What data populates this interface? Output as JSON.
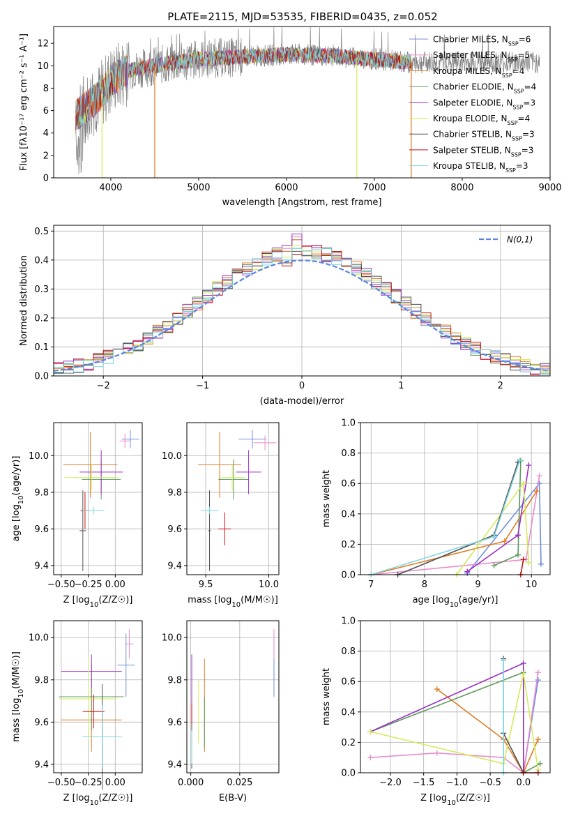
{
  "title": "PLATE=2115, MJD=53535, FIBERID=0435, z=0.052",
  "colors": {
    "Chabrier MILES": "#6f8ee0",
    "Salpeter MILES": "#e88ccc",
    "Kroupa MILES": "#e07b24",
    "Chabrier ELODIE": "#5c9a5c",
    "Salpeter ELODIE": "#9a2fc4",
    "Kroupa ELODIE": "#d4ea5a",
    "Chabrier STELIB": "#505050",
    "Salpeter STELIB": "#cc1010",
    "Kroupa STELIB": "#7fd6e0",
    "data": "#808080",
    "normal": "#5b84e0"
  },
  "chart_data": [
    {
      "id": "spectrum",
      "type": "line",
      "title": "PLATE=2115, MJD=53535, FIBERID=0435, z=0.052",
      "xlabel": "wavelength [Angstrom, rest frame]",
      "ylabel": "Flux [fλ10⁻¹⁷ erg cm⁻² s⁻¹ A⁻¹]",
      "xlim": [
        3350,
        9000
      ],
      "ylim": [
        0,
        13.5
      ],
      "xticks": [
        4000,
        5000,
        6000,
        7000,
        8000,
        9000
      ],
      "yticks": [
        0,
        2,
        4,
        6,
        8,
        10,
        12
      ],
      "grid": false,
      "legend_position": "top-right",
      "legend": [
        {
          "label": "Chabrier MILES, N",
          "sub": "SSP",
          "suffix": "=6"
        },
        {
          "label": "Salpeter MILES, N",
          "sub": "SSP",
          "suffix": "=5"
        },
        {
          "label": "Kroupa MILES, N",
          "sub": "SSP",
          "suffix": "=4"
        },
        {
          "label": "Chabrier ELODIE, N",
          "sub": "SSP",
          "suffix": "=4"
        },
        {
          "label": "Salpeter ELODIE, N",
          "sub": "SSP",
          "suffix": "=3"
        },
        {
          "label": "Kroupa ELODIE, N",
          "sub": "SSP",
          "suffix": "=4"
        },
        {
          "label": "Chabrier STELIB, N",
          "sub": "SSP",
          "suffix": "=3"
        },
        {
          "label": "Salpeter STELIB, N",
          "sub": "SSP",
          "suffix": "=3"
        },
        {
          "label": "Kroupa STELIB, N",
          "sub": "SSP",
          "suffix": "=3"
        }
      ],
      "continuum": [
        [
          3600,
          5.5
        ],
        [
          3750,
          6.5
        ],
        [
          3900,
          7.5
        ],
        [
          4000,
          8.7
        ],
        [
          4200,
          9.6
        ],
        [
          4500,
          10.0
        ],
        [
          5000,
          10.6
        ],
        [
          5500,
          10.8
        ],
        [
          6000,
          11.0
        ],
        [
          6500,
          10.9
        ],
        [
          7000,
          10.6
        ],
        [
          7400,
          10.3
        ]
      ],
      "spikes_down": [
        [
          3900,
          0.0
        ],
        [
          4500,
          0.0
        ],
        [
          6800,
          0.0
        ],
        [
          7420,
          0.0
        ]
      ]
    },
    {
      "id": "residuals",
      "type": "line",
      "xlabel": "(data-model)/error",
      "ylabel": "Normed distribution",
      "xlim": [
        -2.5,
        2.5
      ],
      "ylim": [
        0,
        0.52
      ],
      "xticks": [
        -2,
        -1,
        0,
        1,
        2
      ],
      "yticks": [
        0.0,
        0.1,
        0.2,
        0.3,
        0.4,
        0.5
      ],
      "grid": true,
      "legend_position": "top-right",
      "legend_label": "N(0,1)",
      "bins": 50,
      "hist_peaks": [
        0.47,
        0.48,
        0.47,
        0.44,
        0.49,
        0.45,
        0.43,
        0.42,
        0.44
      ],
      "distribution": "normal",
      "mean": 0,
      "std": 1
    },
    {
      "id": "age_vs_Z",
      "type": "scatter",
      "xlabel": "Z [log10(Z/Z☉)]",
      "ylabel": "age  [log10(age/yr)]",
      "xlim": [
        -0.57,
        0.25
      ],
      "ylim": [
        9.35,
        10.18
      ],
      "xticks": [
        -0.5,
        -0.25,
        0.0
      ],
      "yticks": [
        9.4,
        9.6,
        9.8,
        10.0
      ],
      "grid": true,
      "points": [
        {
          "series": "Chabrier MILES",
          "x": 0.14,
          "y": 10.09,
          "xerr": 0.08,
          "yerr": 0.05
        },
        {
          "series": "Salpeter MILES",
          "x": 0.09,
          "y": 10.08,
          "xerr": 0.05,
          "yerr": 0.04
        },
        {
          "series": "Kroupa MILES",
          "x": -0.23,
          "y": 9.95,
          "xerr": 0.25,
          "yerr": 0.18
        },
        {
          "series": "Chabrier ELODIE",
          "x": -0.13,
          "y": 9.87,
          "xerr": 0.18,
          "yerr": 0.11
        },
        {
          "series": "Salpeter ELODIE",
          "x": -0.13,
          "y": 9.91,
          "xerr": 0.2,
          "yerr": 0.12
        },
        {
          "series": "Kroupa ELODIE",
          "x": -0.22,
          "y": 9.88,
          "xerr": 0.25,
          "yerr": 0.07
        },
        {
          "series": "Chabrier STELIB",
          "x": -0.3,
          "y": 9.59,
          "xerr": 0.03,
          "yerr": 0.22
        },
        {
          "series": "Salpeter STELIB",
          "x": -0.28,
          "y": 9.7,
          "xerr": 0.04,
          "yerr": 0.1
        },
        {
          "series": "Kroupa STELIB",
          "x": -0.2,
          "y": 9.7,
          "xerr": 0.1,
          "yerr": 0.02
        }
      ]
    },
    {
      "id": "age_vs_mass",
      "type": "scatter",
      "xlabel": "mass [log10(M/M☉)]",
      "ylabel": "",
      "xlim": [
        9.35,
        10.08
      ],
      "ylim": [
        9.35,
        10.18
      ],
      "xticks": [
        9.5,
        10.0
      ],
      "yticks": [
        9.4,
        9.6,
        9.8,
        10.0
      ],
      "grid": true,
      "points": [
        {
          "series": "Chabrier MILES",
          "x": 9.87,
          "y": 10.09,
          "xerr": 0.11,
          "yerr": 0.05
        },
        {
          "series": "Salpeter MILES",
          "x": 9.97,
          "y": 10.07,
          "xerr": 0.09,
          "yerr": 0.04
        },
        {
          "series": "Kroupa MILES",
          "x": 9.61,
          "y": 9.95,
          "xerr": 0.17,
          "yerr": 0.18
        },
        {
          "series": "Chabrier ELODIE",
          "x": 9.72,
          "y": 9.87,
          "xerr": 0.12,
          "yerr": 0.11
        },
        {
          "series": "Salpeter ELODIE",
          "x": 9.84,
          "y": 9.91,
          "xerr": 0.1,
          "yerr": 0.12
        },
        {
          "series": "Kroupa ELODIE",
          "x": 9.71,
          "y": 9.88,
          "xerr": 0.1,
          "yerr": 0.07
        },
        {
          "series": "Chabrier STELIB",
          "x": 9.53,
          "y": 9.59,
          "xerr": 0.01,
          "yerr": 0.22
        },
        {
          "series": "Salpeter STELIB",
          "x": 9.65,
          "y": 9.6,
          "xerr": 0.05,
          "yerr": 0.09
        },
        {
          "series": "Kroupa STELIB",
          "x": 9.53,
          "y": 9.7,
          "xerr": 0.07,
          "yerr": 0.02
        }
      ]
    },
    {
      "id": "mass_weight_vs_age",
      "type": "line",
      "xlabel": "age  [log10(age/yr)]",
      "ylabel": "mass weight",
      "xlim": [
        6.8,
        10.35
      ],
      "ylim": [
        0,
        1.0
      ],
      "xticks": [
        7,
        8,
        9,
        10
      ],
      "yticks": [
        0.0,
        0.2,
        0.4,
        0.6,
        0.8,
        1.0
      ],
      "grid": true,
      "series": [
        {
          "name": "Chabrier MILES",
          "x": [
            8.8,
            10.15,
            10.18
          ],
          "y": [
            0.01,
            0.6,
            0.07
          ]
        },
        {
          "name": "Salpeter MILES",
          "x": [
            7.0,
            9.9,
            10.15
          ],
          "y": [
            0.0,
            0.1,
            0.65
          ]
        },
        {
          "name": "Kroupa MILES",
          "x": [
            7.0,
            9.5,
            10.1
          ],
          "y": [
            0.0,
            0.22,
            0.55
          ]
        },
        {
          "name": "Chabrier ELODIE",
          "x": [
            9.3,
            9.75,
            9.8
          ],
          "y": [
            0.06,
            0.13,
            0.75
          ]
        },
        {
          "name": "Salpeter ELODIE",
          "x": [
            8.8,
            9.75,
            9.95
          ],
          "y": [
            0.02,
            0.26,
            0.72
          ]
        },
        {
          "name": "Kroupa ELODIE",
          "x": [
            8.6,
            9.85,
            9.95
          ],
          "y": [
            0.0,
            0.6,
            0.08
          ]
        },
        {
          "name": "Chabrier STELIB",
          "x": [
            7.5,
            9.3,
            9.75
          ],
          "y": [
            0.0,
            0.26,
            0.74
          ]
        },
        {
          "name": "Salpeter STELIB",
          "x": [
            9.8,
            9.85
          ],
          "y": [
            0.0,
            0.1
          ]
        },
        {
          "name": "Kroupa STELIB",
          "x": [
            7.0,
            9.3,
            9.78
          ],
          "y": [
            0.0,
            0.25,
            0.75
          ]
        }
      ]
    },
    {
      "id": "mass_vs_Z",
      "type": "scatter",
      "xlabel": "Z [log10(Z/Z☉)]",
      "ylabel": "mass [log10(M/M☉)]",
      "xlim": [
        -0.57,
        0.25
      ],
      "ylim": [
        9.36,
        10.08
      ],
      "xticks": [
        -0.5,
        -0.25,
        0.0
      ],
      "yticks": [
        9.4,
        9.6,
        9.8,
        10.0
      ],
      "grid": true,
      "points": [
        {
          "series": "Chabrier MILES",
          "x": 0.1,
          "y": 9.87,
          "xerr": 0.08,
          "yerr": 0.15
        },
        {
          "series": "Salpeter MILES",
          "x": 0.13,
          "y": 9.97,
          "xerr": 0.04,
          "yerr": 0.07
        },
        {
          "series": "Kroupa MILES",
          "x": -0.22,
          "y": 9.61,
          "xerr": 0.28,
          "yerr": 0.15
        },
        {
          "series": "Chabrier ELODIE",
          "x": -0.22,
          "y": 9.72,
          "xerr": 0.3,
          "yerr": 0.16
        },
        {
          "series": "Salpeter ELODIE",
          "x": -0.22,
          "y": 9.84,
          "xerr": 0.28,
          "yerr": 0.08
        },
        {
          "series": "Kroupa ELODIE",
          "x": -0.25,
          "y": 9.71,
          "xerr": 0.27,
          "yerr": 0.2
        },
        {
          "series": "Chabrier STELIB",
          "x": -0.12,
          "y": 9.53,
          "xerr": 0.17,
          "yerr": 0.25
        },
        {
          "series": "Salpeter STELIB",
          "x": -0.2,
          "y": 9.65,
          "xerr": 0.1,
          "yerr": 0.08
        },
        {
          "series": "Kroupa STELIB",
          "x": -0.12,
          "y": 9.53,
          "xerr": 0.18,
          "yerr": 0.15
        }
      ]
    },
    {
      "id": "mass_vs_ebv",
      "type": "scatter",
      "xlabel": "E(B-V)",
      "ylabel": "",
      "xlim": [
        -0.002,
        0.045
      ],
      "ylim": [
        9.36,
        10.08
      ],
      "xticks": [
        0.0,
        0.025
      ],
      "yticks": [
        9.4,
        9.6,
        9.8,
        10.0
      ],
      "grid": true,
      "points": [
        {
          "series": "Chabrier MILES",
          "x": 0.0425,
          "y": 9.87,
          "yerr": 0.15
        },
        {
          "series": "Salpeter MILES",
          "x": 0.0425,
          "y": 9.97,
          "yerr": 0.07
        },
        {
          "series": "Kroupa MILES",
          "x": 0.007,
          "y": 9.68,
          "yerr": 0.22
        },
        {
          "series": "Chabrier ELODIE",
          "x": 0.007,
          "y": 9.6,
          "yerr": 0.12
        },
        {
          "series": "Salpeter ELODIE",
          "x": 0.0005,
          "y": 9.8,
          "yerr": 0.12
        },
        {
          "series": "Kroupa ELODIE",
          "x": 0.004,
          "y": 9.65,
          "yerr": 0.15
        },
        {
          "series": "Chabrier STELIB",
          "x": 0.0005,
          "y": 9.53,
          "yerr": 0.15
        },
        {
          "series": "Salpeter STELIB",
          "x": 0.0005,
          "y": 9.64,
          "yerr": 0.05
        },
        {
          "series": "Kroupa STELIB",
          "x": 0.0005,
          "y": 9.48,
          "yerr": 0.08
        }
      ]
    },
    {
      "id": "mass_weight_vs_Z",
      "type": "line",
      "xlabel": "Z [log10(Z/Z☉)]",
      "ylabel": "mass weight",
      "xlim": [
        -2.45,
        0.4
      ],
      "ylim": [
        0,
        1.0
      ],
      "xticks": [
        -2.0,
        -1.5,
        -1.0,
        -0.5,
        0.0
      ],
      "yticks": [
        0.0,
        0.2,
        0.4,
        0.6,
        0.8,
        1.0
      ],
      "grid": true,
      "series": [
        {
          "name": "Chabrier MILES",
          "x": [
            0.0,
            0.22
          ],
          "y": [
            0.0,
            0.61
          ]
        },
        {
          "name": "Salpeter MILES",
          "x": [
            -2.3,
            -1.3,
            -0.3,
            0.0,
            0.22
          ],
          "y": [
            0.1,
            0.13,
            0.1,
            0.0,
            0.66
          ]
        },
        {
          "name": "Kroupa MILES",
          "x": [
            -1.3,
            -0.3,
            0.0,
            0.22
          ],
          "y": [
            0.55,
            0.22,
            0.0,
            0.22
          ]
        },
        {
          "name": "Chabrier ELODIE",
          "x": [
            -2.3,
            0.0,
            0.0,
            0.25
          ],
          "y": [
            0.27,
            0.66,
            0.0,
            0.06
          ]
        },
        {
          "name": "Salpeter ELODIE",
          "x": [
            -2.3,
            0.0,
            0.0
          ],
          "y": [
            0.27,
            0.72,
            0.0
          ]
        },
        {
          "name": "Kroupa ELODIE",
          "x": [
            -2.3,
            -0.3,
            0.0,
            0.22
          ],
          "y": [
            0.27,
            0.06,
            0.65,
            0.02
          ]
        },
        {
          "name": "Chabrier STELIB",
          "x": [
            -0.3,
            -0.3,
            0.0
          ],
          "y": [
            0.75,
            0.26,
            0.0
          ]
        },
        {
          "name": "Salpeter STELIB",
          "x": [
            0.0,
            0.22
          ],
          "y": [
            0.0,
            0.0
          ]
        },
        {
          "name": "Kroupa STELIB",
          "x": [
            -0.3,
            -0.3
          ],
          "y": [
            0.74,
            0.0
          ]
        }
      ]
    }
  ]
}
